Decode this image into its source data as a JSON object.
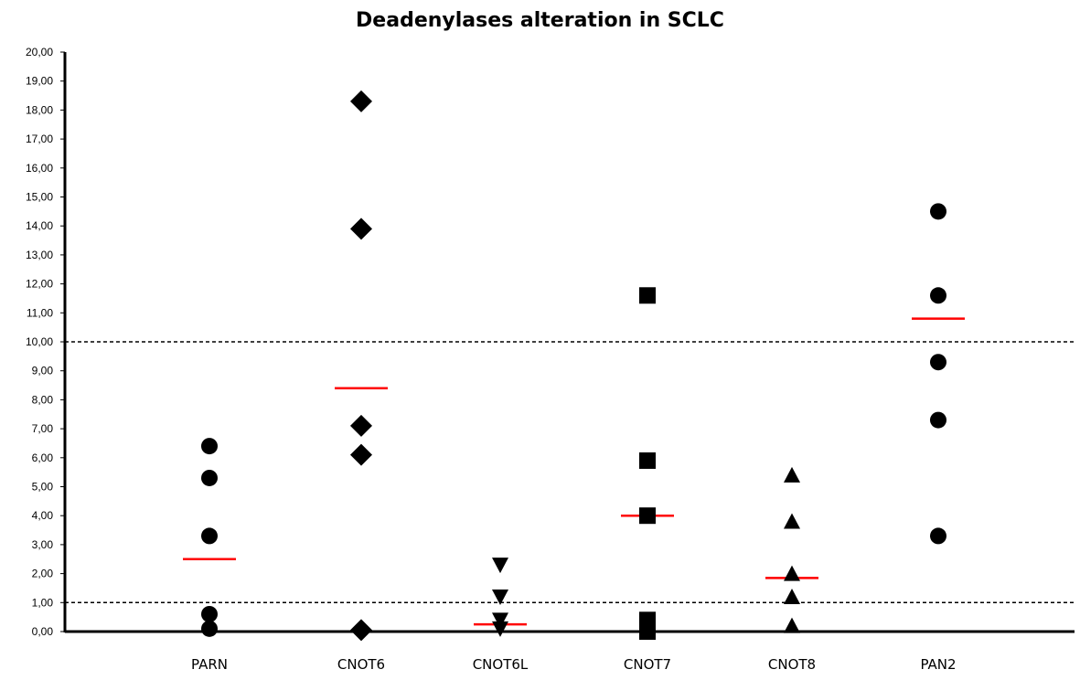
{
  "chart_data": {
    "type": "scatter",
    "title": "Deadenylases alteration in SCLC",
    "xlabel": "",
    "ylabel": "",
    "ylim": [
      0,
      20
    ],
    "y_tick_labels": [
      "0,00",
      "1,00",
      "2,00",
      "3,00",
      "4,00",
      "5,00",
      "6,00",
      "7,00",
      "8,00",
      "9,00",
      "10,00",
      "11,00",
      "12,00",
      "13,00",
      "14,00",
      "15,00",
      "16,00",
      "17,00",
      "18,00",
      "19,00",
      "20,00"
    ],
    "categories": [
      "PARN",
      "CNOT6",
      "CNOT6L",
      "CNOT7",
      "CNOT8",
      "PAN2"
    ],
    "series": [
      {
        "category": "PARN",
        "marker": "circle",
        "values": [
          6.4,
          5.3,
          3.3,
          0.6,
          0.1
        ],
        "median": 2.5
      },
      {
        "category": "CNOT6",
        "marker": "diamond",
        "values": [
          18.3,
          13.9,
          7.1,
          6.1,
          0.05
        ],
        "median": 8.4
      },
      {
        "category": "CNOT6L",
        "marker": "triangle-down",
        "values": [
          2.3,
          1.2,
          0.4,
          0.1
        ],
        "median": 0.25
      },
      {
        "category": "CNOT7",
        "marker": "square",
        "values": [
          11.6,
          5.9,
          4.0,
          0.4,
          0.1,
          0.0
        ],
        "median": 4.0
      },
      {
        "category": "CNOT8",
        "marker": "triangle-up",
        "values": [
          5.4,
          3.8,
          2.0,
          1.2,
          0.2
        ],
        "median": 1.85
      },
      {
        "category": "PAN2",
        "marker": "circle",
        "values": [
          14.5,
          11.6,
          9.3,
          7.3,
          3.3
        ],
        "median": 10.8
      }
    ],
    "reference_lines": [
      10,
      1
    ],
    "colors": {
      "points": "#000000",
      "median": "#ff0000",
      "reference": "#000000"
    },
    "grid": false,
    "legend": "none"
  }
}
